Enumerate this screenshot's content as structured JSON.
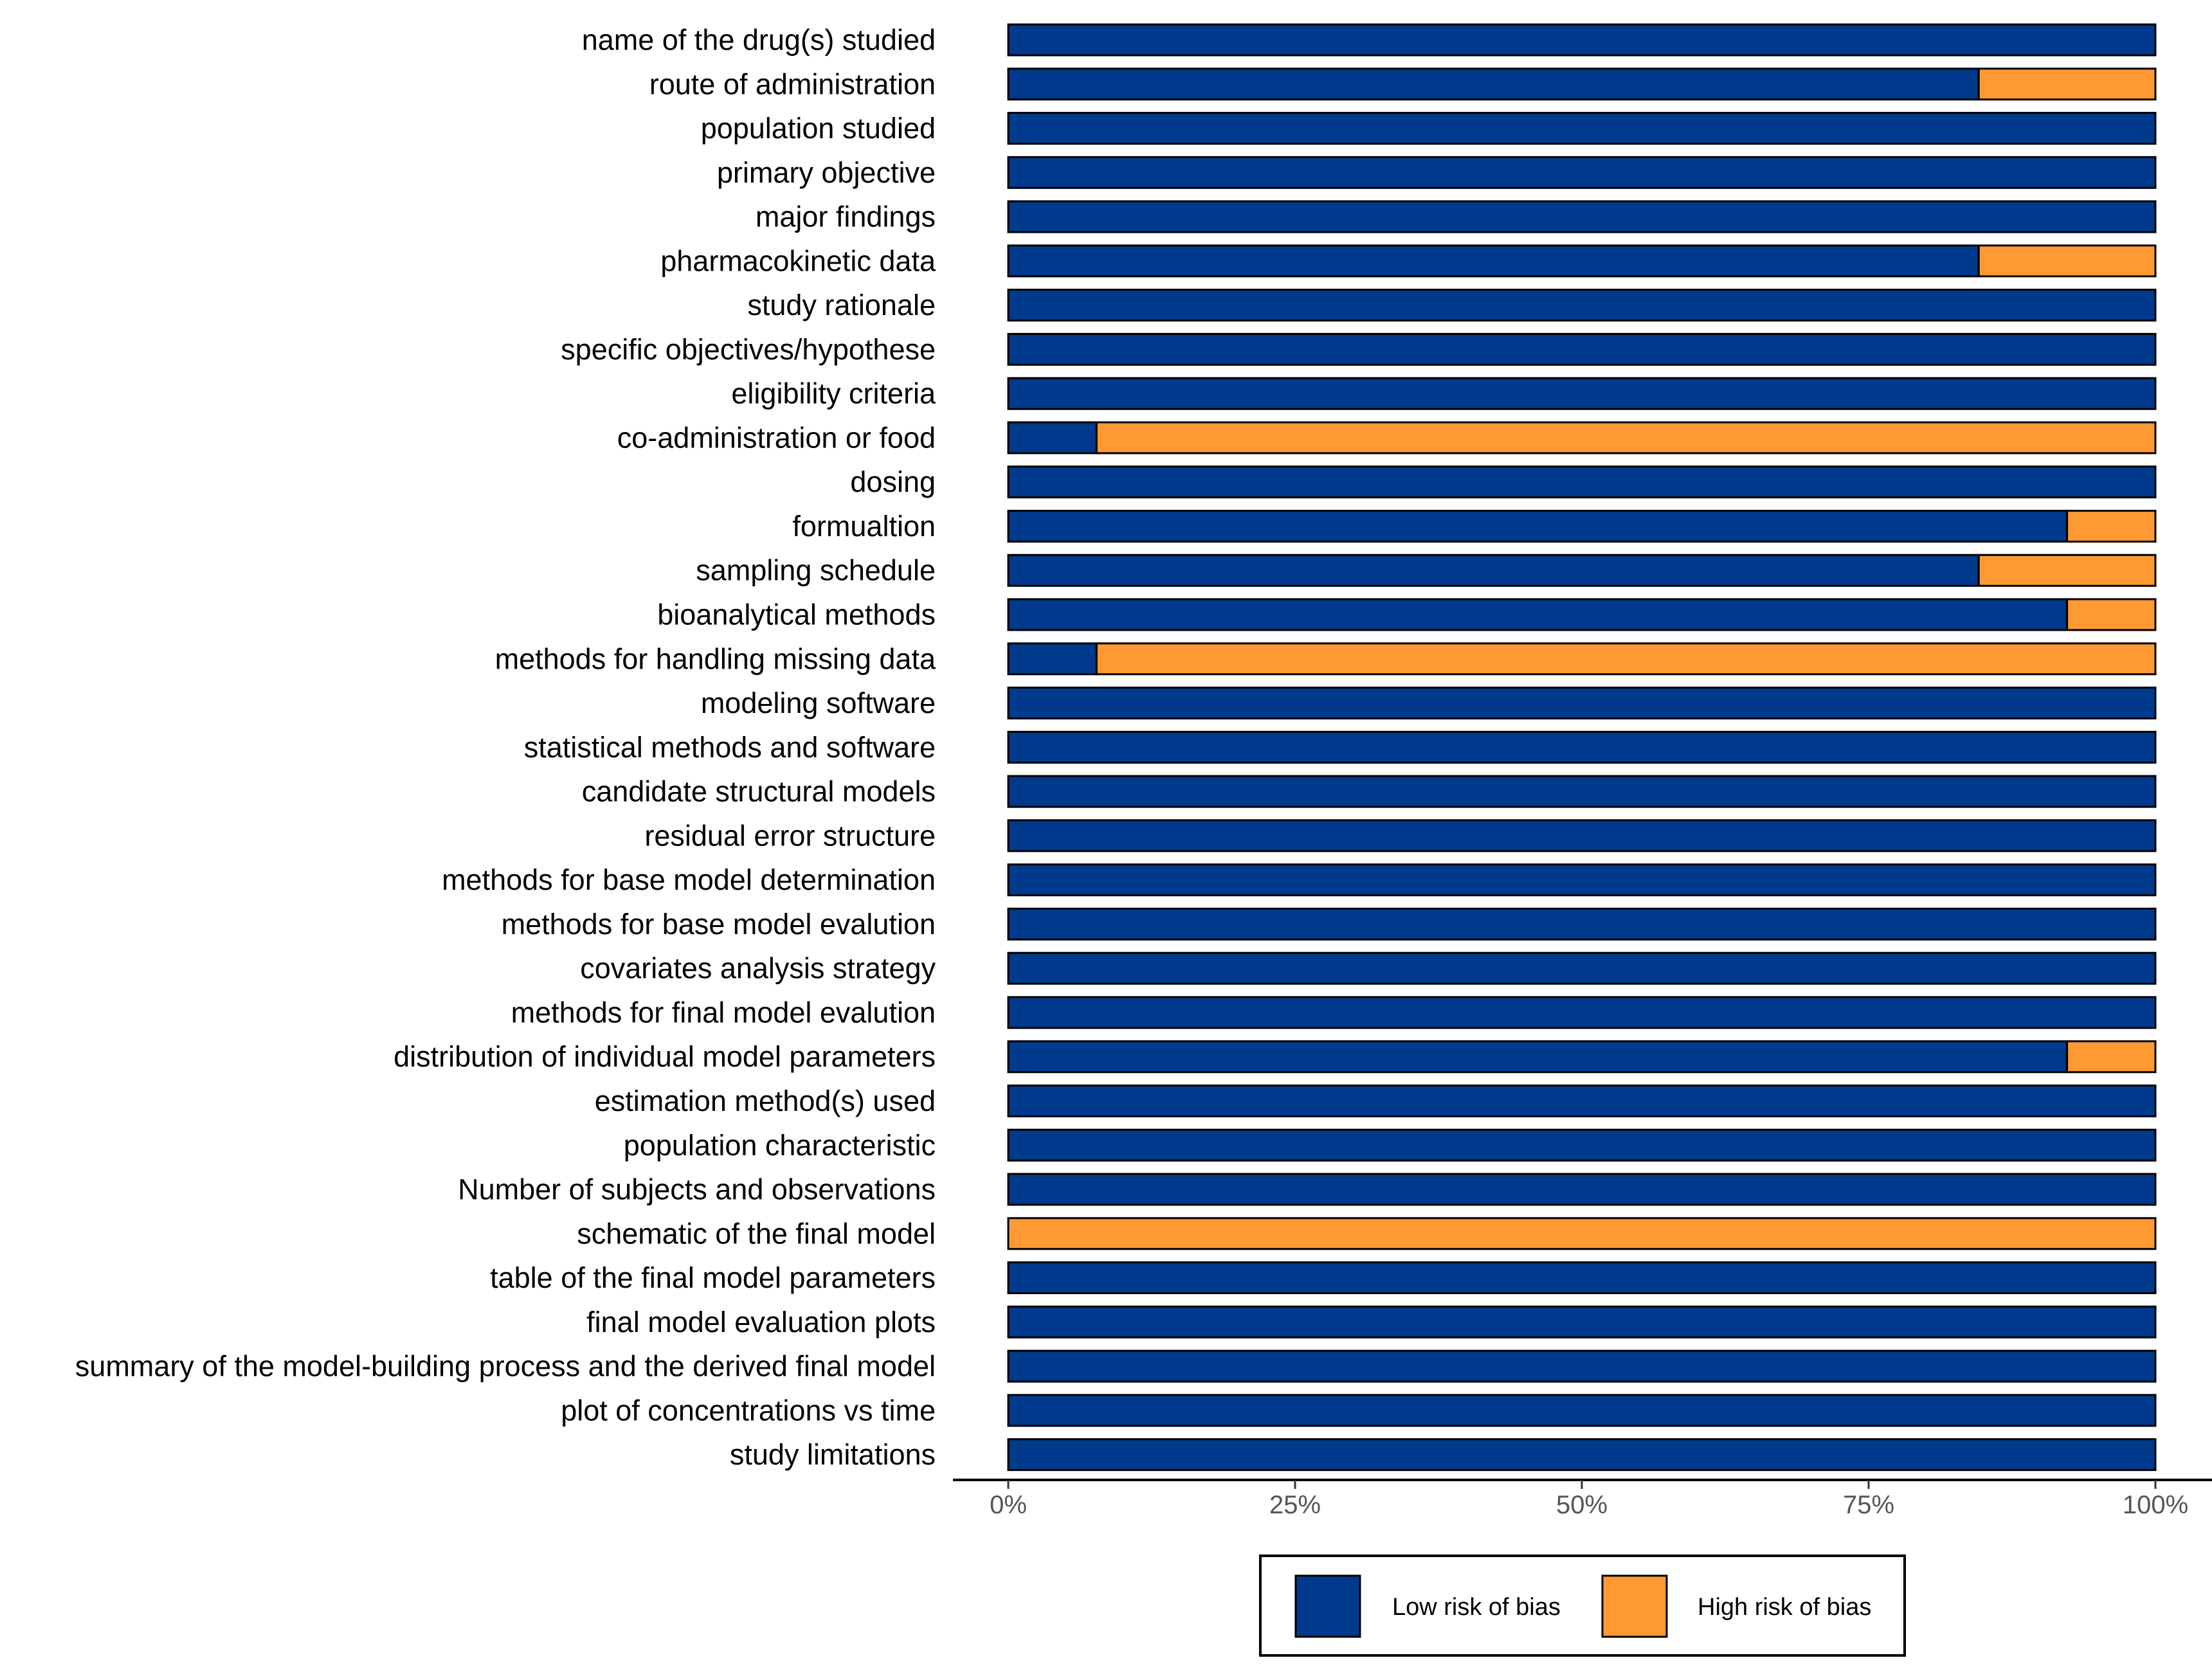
{
  "chart_data": {
    "type": "bar",
    "orientation": "horizontal",
    "stacked": true,
    "normalized": true,
    "title": "",
    "xlabel": "",
    "ylabel": "",
    "xlim": [
      0,
      100
    ],
    "x_ticks": [
      0,
      25,
      50,
      75,
      100
    ],
    "x_tick_labels": [
      "0%",
      "25%",
      "50%",
      "75%",
      "100%"
    ],
    "grid": false,
    "legend_position": "bottom",
    "categories": [
      "name of the drug(s) studied",
      "route of administration",
      "population studied",
      "primary objective",
      "major findings",
      "pharmacokinetic data",
      "study rationale",
      "specific objectives/hypothese",
      "eligibility criteria",
      "co-administration or food",
      "dosing",
      "formualtion",
      "sampling schedule",
      "bioanalytical methods",
      "methods for handling missing data",
      "modeling software",
      "statistical methods and software",
      "candidate structural models",
      "residual error structure",
      "methods for base model determination",
      "methods for base model evalution",
      "covariates analysis strategy",
      "methods for final model evalution",
      "distribution of individual model parameters",
      "estimation method(s) used",
      "population characteristic",
      "Number of subjects and observations",
      "schematic of the final model",
      "table of the final model parameters",
      "final model evaluation plots",
      "summary of the model-building process and the derived final model",
      "plot of concentrations vs  time",
      "study limitations"
    ],
    "series": [
      {
        "name": "Low risk of bias",
        "color": "#003a8c",
        "values": [
          100,
          84.6,
          100,
          100,
          100,
          84.6,
          100,
          100,
          100,
          7.7,
          100,
          92.3,
          84.6,
          92.3,
          7.7,
          100,
          100,
          100,
          100,
          100,
          100,
          100,
          100,
          92.3,
          100,
          100,
          100,
          0,
          100,
          100,
          100,
          100,
          100
        ]
      },
      {
        "name": "High risk of bias",
        "color": "#ff9933",
        "values": [
          0,
          15.4,
          0,
          0,
          0,
          15.4,
          0,
          0,
          0,
          92.3,
          0,
          7.7,
          15.4,
          7.7,
          92.3,
          0,
          0,
          0,
          0,
          0,
          0,
          0,
          0,
          7.7,
          0,
          0,
          0,
          100,
          0,
          0,
          0,
          0,
          0
        ]
      }
    ]
  }
}
